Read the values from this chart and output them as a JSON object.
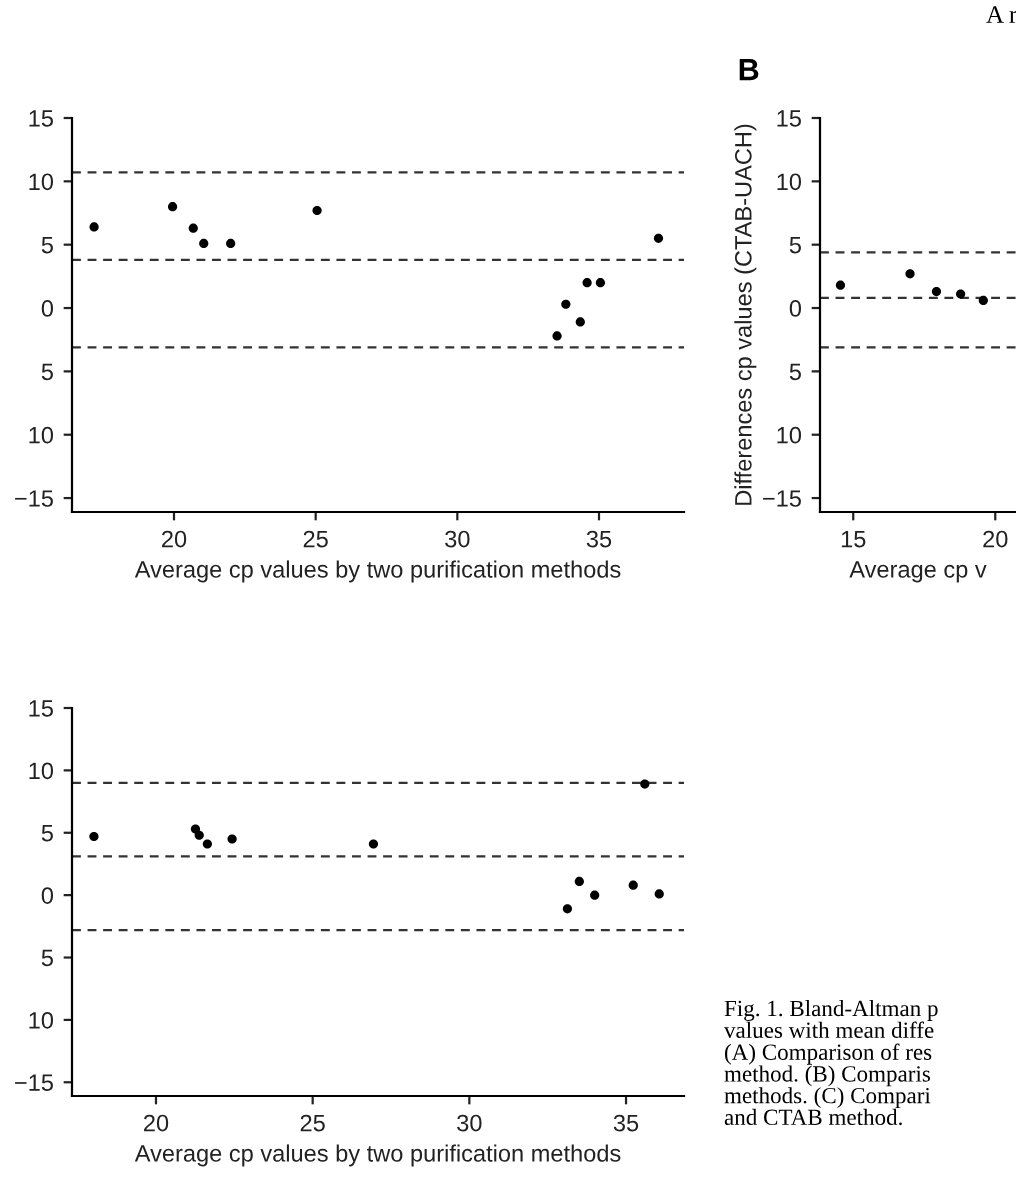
{
  "chart_data": [
    {
      "type": "scatter",
      "xlabel": "Average cp values by two purification methods",
      "marker": "circle",
      "grid": false,
      "x": [
        17.18,
        19.95,
        20.68,
        21.05,
        22.0,
        25.05,
        33.52,
        33.83,
        34.34,
        34.58,
        35.05,
        37.1
      ],
      "series": [
        {
          "color": "#000000",
          "values": [
            6.4,
            8.0,
            6.3,
            5.1,
            5.1,
            7.7,
            -2.2,
            0.3,
            -1.1,
            2.0,
            2.0,
            5.5
          ]
        }
      ],
      "xlim": [
        16.4,
        38.0
      ],
      "ylim": [
        -16.1,
        15
      ],
      "xticks": [
        20,
        25,
        30,
        35
      ],
      "yticks": [
        15,
        10,
        5,
        0,
        {
          "value": -5,
          "label": "5"
        },
        {
          "value": -10,
          "label": "10"
        },
        {
          "value": -15,
          "label": "−15"
        }
      ],
      "ref_lines": [
        {
          "axis": "y",
          "value": 10.7,
          "line_style": "dashed",
          "color": "#333333"
        },
        {
          "axis": "y",
          "value": 3.8,
          "line_style": "dashed",
          "color": "#333333"
        },
        {
          "axis": "y",
          "value": -3.1,
          "line_style": "dashed",
          "color": "#333333"
        }
      ]
    },
    {
      "type": "scatter",
      "title": "B",
      "xlabel": "Average cp v",
      "ylabel": "Differences cp values (CTAB-UACH)",
      "marker": "circle",
      "grid": false,
      "annotations": [
        "A r"
      ],
      "x": [
        14.55,
        17.0,
        17.93,
        18.78,
        19.58
      ],
      "series": [
        {
          "color": "#000000",
          "values": [
            1.8,
            2.7,
            1.3,
            1.1,
            0.6
          ]
        }
      ],
      "xlim": [
        13.83,
        20.73
      ],
      "ylim": [
        -16.1,
        15
      ],
      "xticks": [
        15,
        20
      ],
      "yticks": [
        15,
        10,
        5,
        0,
        {
          "value": -5,
          "label": "5"
        },
        {
          "value": -10,
          "label": "10"
        },
        {
          "value": -15,
          "label": "−15"
        }
      ],
      "ref_lines": [
        {
          "axis": "y",
          "value": 4.4,
          "line_style": "dashed",
          "color": "#333333"
        },
        {
          "axis": "y",
          "value": 0.8,
          "line_style": "dashed",
          "color": "#333333"
        },
        {
          "axis": "y",
          "value": -3.1,
          "line_style": "dashed",
          "color": "#333333"
        }
      ]
    },
    {
      "type": "scatter",
      "xlabel": "Average cp values by two purification methods",
      "marker": "circle",
      "grid": false,
      "annotations": [
        "Fig. 1. Bland-Altman p\nvalues with mean diffe\n(A) Comparison of res\nmethod. (B) Comparis\nmethods. (C) Compari\nand CTAB method."
      ],
      "x": [
        18.02,
        21.26,
        21.38,
        21.64,
        22.43,
        26.94,
        33.13,
        33.51,
        34.0,
        35.23,
        35.6,
        36.06
      ],
      "series": [
        {
          "color": "#000000",
          "values": [
            4.7,
            5.3,
            4.8,
            4.1,
            4.5,
            4.1,
            -1.1,
            1.1,
            0.0,
            0.8,
            8.9,
            0.1
          ]
        }
      ],
      "xlim": [
        17.32,
        36.85
      ],
      "ylim": [
        -16.1,
        15
      ],
      "xticks": [
        20,
        25,
        30,
        35
      ],
      "yticks": [
        15,
        10,
        5,
        0,
        {
          "value": -5,
          "label": "5"
        },
        {
          "value": -10,
          "label": "10"
        },
        {
          "value": -15,
          "label": "−15"
        }
      ],
      "ref_lines": [
        {
          "axis": "y",
          "value": 9.0,
          "line_style": "dashed",
          "color": "#333333"
        },
        {
          "axis": "y",
          "value": 3.1,
          "line_style": "dashed",
          "color": "#333333"
        },
        {
          "axis": "y",
          "value": -2.8,
          "line_style": "dashed",
          "color": "#333333"
        }
      ]
    }
  ]
}
